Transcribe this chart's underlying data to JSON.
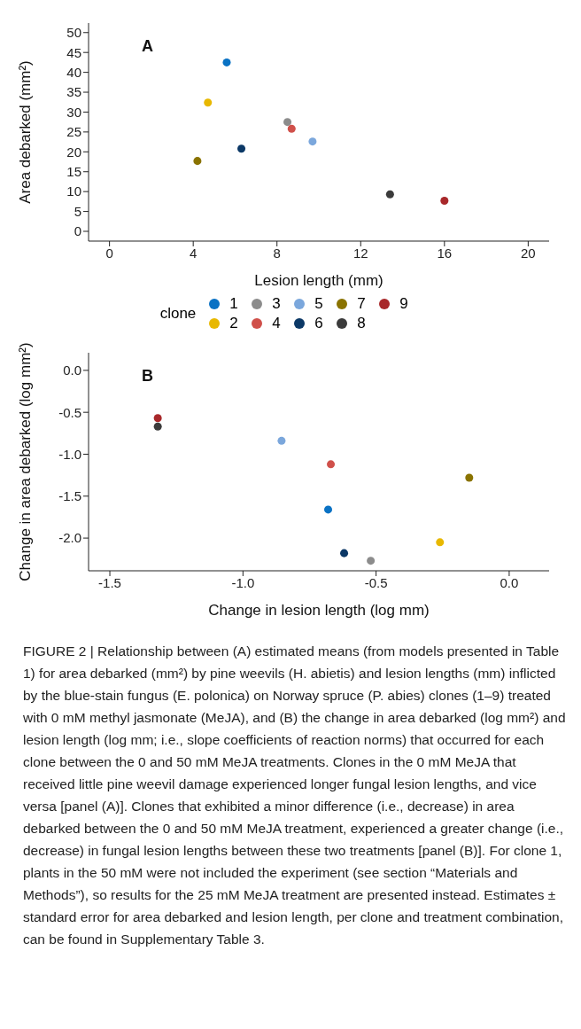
{
  "chart_data": [
    {
      "type": "scatter",
      "xlabel": "Lesion length (mm)",
      "ylabel": "Area debarked (mm²)",
      "legend_title": "clone",
      "legend": "bottom",
      "marker": "circle",
      "grid": false,
      "xlim": [
        -1.0,
        21.0
      ],
      "xticks": [
        0,
        4,
        8,
        12,
        16,
        20
      ],
      "ylim": [
        -2.45,
        52.4
      ],
      "yticks": [
        0,
        5,
        10,
        15,
        20,
        25,
        30,
        35,
        40,
        45,
        50
      ],
      "annotations": [
        "A"
      ],
      "series": [
        {
          "name": "1",
          "color": "#0a72c4",
          "x": [
            5.6
          ],
          "values": [
            42.5
          ]
        },
        {
          "name": "2",
          "color": "#e8b800",
          "x": [
            4.7
          ],
          "values": [
            32.4
          ]
        },
        {
          "name": "3",
          "color": "#8c8c8c",
          "x": [
            8.5
          ],
          "values": [
            27.5
          ]
        },
        {
          "name": "4",
          "color": "#d0504a",
          "x": [
            8.7
          ],
          "values": [
            25.8
          ]
        },
        {
          "name": "5",
          "color": "#7ba7dc",
          "x": [
            9.7
          ],
          "values": [
            22.6
          ]
        },
        {
          "name": "6",
          "color": "#0b3866",
          "x": [
            6.3
          ],
          "values": [
            20.8
          ]
        },
        {
          "name": "7",
          "color": "#8a7300",
          "x": [
            4.2
          ],
          "values": [
            17.7
          ]
        },
        {
          "name": "8",
          "color": "#3b3b3b",
          "x": [
            13.4
          ],
          "values": [
            9.3
          ]
        },
        {
          "name": "9",
          "color": "#a8282a",
          "x": [
            16.0
          ],
          "values": [
            7.7
          ]
        }
      ]
    },
    {
      "type": "scatter",
      "xlabel": "Change in lesion length (log mm)",
      "ylabel": "Change in area debarked (log mm²)",
      "marker": "circle",
      "grid": false,
      "xlim": [
        -1.58,
        0.15
      ],
      "xticks": [
        -1.5,
        {
          "value": -1,
          "label": "-1.0"
        },
        -0.5,
        {
          "value": 0,
          "label": "0.0"
        }
      ],
      "ylim": [
        -2.39,
        0.21
      ],
      "yticks": [
        {
          "value": 0,
          "label": "0.0"
        },
        -0.5,
        {
          "value": -1,
          "label": "-1.0"
        },
        -1.5,
        {
          "value": -2,
          "label": "-2.0"
        }
      ],
      "annotations": [
        "B",
        "FIGURE 2 | Relationship between (A) estimated means (from models presented in Table 1) for area debarked (mm²) by pine weevils (H. abietis) and lesion lengths (mm) inflicted by the blue-stain fungus (E. polonica) on Norway spruce (P. abies) clones (1–9) treated with 0 mM methyl jasmonate (MeJA), and (B) the change in area debarked (log mm²) and lesion length (log mm; i.e., slope coefficients of reaction norms) that occurred for each clone between the 0 and 50 mM MeJA treatments. Clones in the 0 mM MeJA that received little pine weevil damage experienced longer fungal lesion lengths, and vice versa [panel (A)]. Clones that exhibited a minor difference (i.e., decrease) in area debarked between the 0 and 50 mM MeJA treatment, experienced a greater change (i.e., decrease) in fungal lesion lengths between these two treatments [panel (B)]. For clone 1, plants in the 50 mM were not included the experiment (see section “Materials and Methods”), so results for the 25 mM MeJA treatment are presented instead. Estimates ± standard error for area debarked and lesion length, per clone and treatment combination, can be found in Supplementary Table 3."
      ],
      "series": [
        {
          "color": "#0a72c4",
          "x": [
            -0.68
          ],
          "values": [
            -1.66
          ]
        },
        {
          "color": "#e8b800",
          "x": [
            -0.26
          ],
          "values": [
            -2.05
          ]
        },
        {
          "color": "#8c8c8c",
          "x": [
            -0.52
          ],
          "values": [
            -2.27
          ]
        },
        {
          "color": "#d0504a",
          "x": [
            -0.67
          ],
          "values": [
            -1.12
          ]
        },
        {
          "color": "#7ba7dc",
          "x": [
            -0.855
          ],
          "values": [
            -0.84
          ]
        },
        {
          "color": "#0b3866",
          "x": [
            -0.62
          ],
          "values": [
            -2.18
          ]
        },
        {
          "color": "#8a7300",
          "x": [
            -0.15
          ],
          "values": [
            -1.28
          ]
        },
        {
          "color": "#3b3b3b",
          "x": [
            -1.32
          ],
          "values": [
            -0.67
          ]
        },
        {
          "color": "#a8282a",
          "x": [
            -1.32
          ],
          "values": [
            -0.57
          ]
        }
      ]
    }
  ]
}
